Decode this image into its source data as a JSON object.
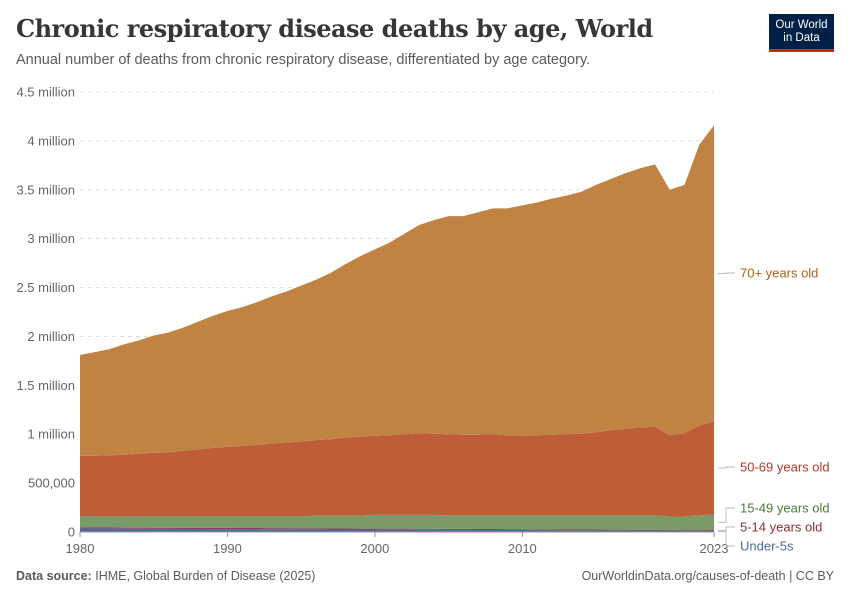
{
  "header": {
    "title": "Chronic respiratory disease deaths by age, World",
    "subtitle": "Annual number of deaths from chronic respiratory disease, differentiated by age category.",
    "logo": "Our World in Data"
  },
  "footer": {
    "source_label": "Data source:",
    "source": "IHME, Global Burden of Disease (2025)",
    "right": "OurWorldinData.org/causes-of-death | CC BY"
  },
  "chart_data": {
    "type": "area",
    "stacked": true,
    "title": "Chronic respiratory disease deaths by age, World",
    "xlim": [
      1980,
      2023
    ],
    "ylim": [
      0,
      4500000
    ],
    "grid": "horizontal dashed",
    "legend": "right, inline labels",
    "x_ticks": [
      "1980",
      "1990",
      "2000",
      "2010",
      "2023"
    ],
    "x_tick_values": [
      1980,
      1990,
      2000,
      2010,
      2023
    ],
    "y_ticks": [
      "0",
      "500,000",
      "1 million",
      "1.5 million",
      "2 million",
      "2.5 million",
      "3 million",
      "3.5 million",
      "4 million",
      "4.5 million"
    ],
    "y_tick_values": [
      0,
      500000,
      1000000,
      1500000,
      2000000,
      2500000,
      3000000,
      3500000,
      4000000,
      4500000
    ],
    "x": [
      1980,
      1981,
      1982,
      1983,
      1984,
      1985,
      1986,
      1987,
      1988,
      1989,
      1990,
      1991,
      1992,
      1993,
      1994,
      1995,
      1996,
      1997,
      1998,
      1999,
      2000,
      2001,
      2002,
      2003,
      2004,
      2005,
      2006,
      2007,
      2008,
      2009,
      2010,
      2011,
      2012,
      2013,
      2014,
      2015,
      2016,
      2017,
      2018,
      2019,
      2020,
      2021,
      2022,
      2023
    ],
    "series": [
      {
        "name": "Under-5s",
        "color": "#4C6A9C",
        "label_color": "#4C6A9C",
        "values": [
          35000,
          34000,
          34000,
          33000,
          33000,
          32000,
          32000,
          31000,
          31000,
          30000,
          30000,
          29000,
          29000,
          28000,
          28000,
          27000,
          27000,
          26000,
          26000,
          25000,
          25000,
          24000,
          24000,
          23000,
          23000,
          22000,
          22000,
          21000,
          21000,
          20000,
          20000,
          19000,
          19000,
          18000,
          18000,
          17000,
          16000,
          16000,
          15000,
          15000,
          14000,
          13000,
          13000,
          12000
        ]
      },
      {
        "name": "5-14 years old",
        "color": "#8C4055",
        "label_color": "#883039",
        "values": [
          12000,
          12000,
          12000,
          12000,
          12000,
          12000,
          12000,
          12000,
          12000,
          12000,
          12000,
          12000,
          12000,
          12000,
          12000,
          10000,
          10000,
          10000,
          10000,
          10000,
          10000,
          10000,
          10000,
          10000,
          10000,
          10000,
          10000,
          10000,
          10000,
          10000,
          8000,
          8000,
          8000,
          8000,
          8000,
          8000,
          8000,
          8000,
          8000,
          8000,
          8000,
          8000,
          8000,
          8000
        ]
      },
      {
        "name": "15-49 years old",
        "color": "#7A9A67",
        "label_color": "#4C7A3A",
        "values": [
          113000,
          114000,
          114000,
          115000,
          115000,
          116000,
          116000,
          117000,
          117000,
          118000,
          118000,
          119000,
          119000,
          120000,
          120000,
          123000,
          131000,
          132000,
          132000,
          133000,
          140000,
          141000,
          141000,
          142000,
          142000,
          138000,
          138000,
          139000,
          139000,
          140000,
          142000,
          143000,
          143000,
          144000,
          144000,
          145000,
          146000,
          146000,
          147000,
          147000,
          136000,
          137000,
          149000,
          160000
        ]
      },
      {
        "name": "50-69 years old",
        "color": "#C05D39",
        "label_color": "#B2392A",
        "values": [
          620000,
          620000,
          625000,
          630000,
          640000,
          650000,
          655000,
          670000,
          685000,
          700000,
          710000,
          720000,
          730000,
          745000,
          755000,
          765000,
          772000,
          782000,
          797000,
          807000,
          810000,
          815000,
          825000,
          835000,
          830000,
          830000,
          825000,
          825000,
          830000,
          820000,
          815000,
          820000,
          825000,
          830000,
          835000,
          850000,
          870000,
          885000,
          900000,
          905000,
          832000,
          852000,
          920000,
          950000
        ]
      },
      {
        "name": "70+ years old",
        "color": "#C08344",
        "label_color": "#B16214",
        "values": [
          1030000,
          1060000,
          1085000,
          1130000,
          1160000,
          1200000,
          1225000,
          1260000,
          1305000,
          1350000,
          1390000,
          1420000,
          1460000,
          1505000,
          1545000,
          1595000,
          1640000,
          1700000,
          1775000,
          1845000,
          1905000,
          1970000,
          2050000,
          2130000,
          2185000,
          2230000,
          2235000,
          2275000,
          2310000,
          2320000,
          2355000,
          2380000,
          2415000,
          2440000,
          2475000,
          2530000,
          2570000,
          2615000,
          2650000,
          2685000,
          2510000,
          2540000,
          2870000,
          3030000
        ]
      }
    ]
  }
}
